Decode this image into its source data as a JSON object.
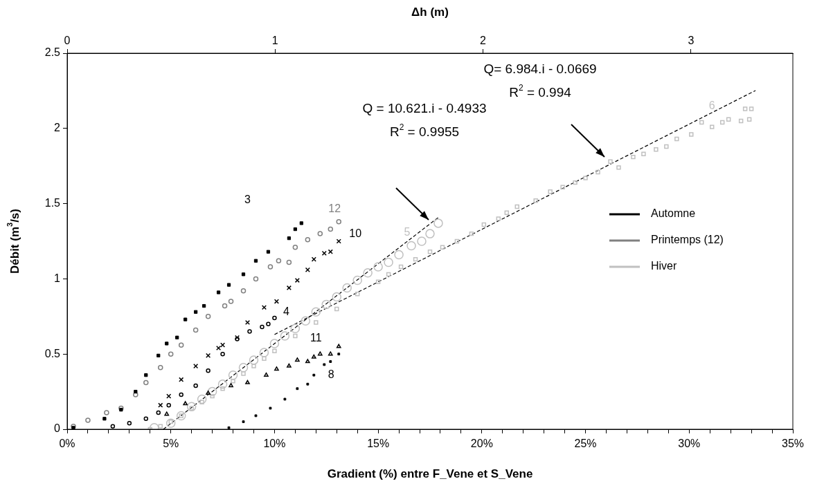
{
  "chart_data": {
    "type": "scatter",
    "xlabel": "Gradient (%) entre F_Vene et S_Vene",
    "ylabel": "Débit (m$^{3}$/s)",
    "x2label": "Δh (m)",
    "xlim": [
      0,
      35
    ],
    "xticks": [
      {
        "value": 0,
        "label": "0%"
      },
      {
        "value": 1,
        "label": null
      },
      {
        "value": 2,
        "label": null
      },
      {
        "value": 3,
        "label": null
      },
      {
        "value": 4,
        "label": null
      },
      {
        "value": 5,
        "label": "5%"
      },
      {
        "value": 6,
        "label": null
      },
      {
        "value": 7,
        "label": null
      },
      {
        "value": 8,
        "label": null
      },
      {
        "value": 9,
        "label": null
      },
      {
        "value": 10,
        "label": "10%"
      },
      {
        "value": 11,
        "label": null
      },
      {
        "value": 12,
        "label": null
      },
      {
        "value": 13,
        "label": null
      },
      {
        "value": 14,
        "label": null
      },
      {
        "value": 15,
        "label": "15%"
      },
      {
        "value": 16,
        "label": null
      },
      {
        "value": 17,
        "label": null
      },
      {
        "value": 18,
        "label": null
      },
      {
        "value": 19,
        "label": null
      },
      {
        "value": 20,
        "label": "20%"
      },
      {
        "value": 21,
        "label": null
      },
      {
        "value": 22,
        "label": null
      },
      {
        "value": 23,
        "label": null
      },
      {
        "value": 24,
        "label": null
      },
      {
        "value": 25,
        "label": "25%"
      },
      {
        "value": 26,
        "label": null
      },
      {
        "value": 27,
        "label": null
      },
      {
        "value": 28,
        "label": null
      },
      {
        "value": 29,
        "label": null
      },
      {
        "value": 30,
        "label": "30%"
      },
      {
        "value": 31,
        "label": null
      },
      {
        "value": 32,
        "label": null
      },
      {
        "value": 33,
        "label": null
      },
      {
        "value": 34,
        "label": null
      },
      {
        "value": 35,
        "label": "35%"
      }
    ],
    "x2lim": [
      0,
      3.49
    ],
    "x2ticks": [
      0,
      1,
      2,
      3
    ],
    "ylim": [
      0,
      2.5
    ],
    "yticks": [
      0,
      0.5,
      1,
      1.5,
      2,
      2.5
    ],
    "legend": "right",
    "annotations": [
      "Q = 10.621.i - 0.4933\nR$^{2}$ = 0.9955",
      "Q= 6.984.i - 0.0669\nR$^{2}$ = 0.994"
    ],
    "series": [
      {
        "name": "3",
        "color": "#000000",
        "marker": "square",
        "x": [
          0.3,
          1.8,
          2.6,
          3.3,
          3.8,
          4.4,
          4.8,
          5.3,
          5.7,
          6.2,
          6.6,
          7.3,
          7.8,
          8.5,
          9.1,
          9.7,
          10.7,
          11.0,
          11.3
        ],
        "values": [
          0.01,
          0.07,
          0.13,
          0.25,
          0.36,
          0.49,
          0.57,
          0.61,
          0.73,
          0.78,
          0.82,
          0.91,
          0.96,
          1.03,
          1.12,
          1.18,
          1.27,
          1.33,
          1.37
        ]
      },
      {
        "name": "12",
        "color": "#808080",
        "marker": "circle",
        "x": [
          0.3,
          1.0,
          1.9,
          2.6,
          3.3,
          3.8,
          4.5,
          5.0,
          5.5,
          6.2,
          6.8,
          7.6,
          7.9,
          8.5,
          9.1,
          9.8,
          10.2,
          10.7,
          11.0,
          11.6,
          12.2,
          12.7,
          13.1
        ],
        "values": [
          0.02,
          0.06,
          0.11,
          0.14,
          0.23,
          0.31,
          0.41,
          0.5,
          0.56,
          0.66,
          0.75,
          0.82,
          0.85,
          0.92,
          1.0,
          1.08,
          1.12,
          1.11,
          1.21,
          1.26,
          1.3,
          1.33,
          1.38
        ]
      },
      {
        "name": "10",
        "color": "#000000",
        "marker": "cross",
        "x": [
          4.5,
          4.9,
          5.5,
          6.2,
          6.8,
          7.3,
          7.5,
          8.2,
          8.7,
          9.5,
          10.1,
          10.7,
          11.1,
          11.6,
          11.9,
          12.4,
          12.7,
          13.1
        ],
        "values": [
          0.16,
          0.22,
          0.33,
          0.42,
          0.49,
          0.54,
          0.56,
          0.61,
          0.71,
          0.81,
          0.85,
          0.94,
          0.99,
          1.06,
          1.13,
          1.17,
          1.18,
          1.25
        ]
      },
      {
        "name": "4",
        "color": "#000000",
        "marker": "circle",
        "x": [
          2.2,
          3.0,
          3.8,
          4.4,
          4.9,
          5.5,
          6.2,
          6.8,
          7.5,
          8.2,
          8.8,
          9.4,
          9.7,
          10.0
        ],
        "values": [
          0.02,
          0.04,
          0.07,
          0.11,
          0.16,
          0.23,
          0.29,
          0.39,
          0.5,
          0.6,
          0.65,
          0.68,
          0.7,
          0.74
        ]
      },
      {
        "name": "11",
        "color": "#000000",
        "marker": "triangle",
        "x": [
          4.8,
          5.7,
          6.8,
          7.9,
          8.7,
          9.6,
          10.1,
          10.7,
          11.1,
          11.6,
          11.9,
          12.2,
          12.7,
          13.1
        ],
        "values": [
          0.1,
          0.17,
          0.24,
          0.29,
          0.31,
          0.36,
          0.4,
          0.42,
          0.46,
          0.45,
          0.48,
          0.5,
          0.5,
          0.55
        ]
      },
      {
        "name": "8",
        "color": "#000000",
        "marker": "square",
        "x": [
          7.8,
          8.5,
          9.1,
          9.8,
          10.5,
          11.1,
          11.6,
          11.9,
          12.4,
          12.7,
          13.1
        ],
        "values": [
          0.01,
          0.05,
          0.09,
          0.14,
          0.2,
          0.27,
          0.3,
          0.36,
          0.43,
          0.45,
          0.5
        ]
      },
      {
        "name": "5",
        "color": "#c0c0c0",
        "marker": "circle",
        "x": [
          4.2,
          5.0,
          5.5,
          6.0,
          6.5,
          7.0,
          7.5,
          8.0,
          8.5,
          9.0,
          9.5,
          10.0,
          10.5,
          11.0,
          11.5,
          12.0,
          12.5,
          13.0,
          13.5,
          14.0,
          14.5,
          15.0,
          15.5,
          16.0,
          16.6,
          17.1,
          17.5,
          17.9
        ],
        "values": [
          0.01,
          0.04,
          0.09,
          0.15,
          0.2,
          0.25,
          0.3,
          0.36,
          0.41,
          0.46,
          0.51,
          0.57,
          0.62,
          0.67,
          0.72,
          0.78,
          0.83,
          0.88,
          0.94,
          0.99,
          1.04,
          1.08,
          1.11,
          1.16,
          1.22,
          1.25,
          1.3,
          1.37
        ]
      },
      {
        "name": "6",
        "color": "#c0c0c0",
        "marker": "square",
        "x": [
          4.0,
          4.5,
          5.0,
          5.5,
          6.0,
          6.5,
          7.0,
          7.5,
          8.0,
          8.5,
          9.0,
          9.5,
          10.0,
          11.0,
          12.0,
          13.0,
          14.0,
          15.0,
          15.5,
          16.1,
          16.8,
          17.5,
          18.1,
          18.8,
          19.5,
          20.1,
          20.8,
          21.2,
          21.7,
          22.6,
          23.3,
          23.9,
          24.5,
          25.0,
          25.6,
          26.2,
          26.6,
          27.3,
          27.8,
          28.4,
          28.9,
          29.4,
          30.1,
          30.6,
          31.1,
          31.6,
          31.9,
          32.5,
          32.7,
          32.9,
          33.0
        ],
        "values": [
          0.0,
          0.02,
          0.05,
          0.09,
          0.14,
          0.18,
          0.22,
          0.27,
          0.32,
          0.37,
          0.42,
          0.47,
          0.52,
          0.62,
          0.71,
          0.8,
          0.9,
          0.98,
          1.03,
          1.08,
          1.13,
          1.18,
          1.21,
          1.25,
          1.3,
          1.36,
          1.4,
          1.44,
          1.48,
          1.52,
          1.58,
          1.61,
          1.64,
          1.67,
          1.71,
          1.78,
          1.74,
          1.81,
          1.83,
          1.86,
          1.88,
          1.93,
          1.96,
          2.04,
          2.01,
          2.04,
          2.06,
          2.05,
          2.13,
          2.06,
          2.13
        ]
      },
      {
        "type": "line",
        "color": "#000000",
        "line_style": "dashed",
        "x": [
          4.64,
          17.9
        ],
        "values": [
          0,
          1.408
        ]
      },
      {
        "type": "line",
        "color": "#000000",
        "line_style": "dashed",
        "x": [
          10,
          33.2
        ],
        "values": [
          0.63,
          2.252
        ]
      },
      {
        "type": "line",
        "name": "Automne",
        "color": "#000000"
      },
      {
        "type": "line",
        "name": "Printemps (12)",
        "color": "#808080"
      },
      {
        "type": "line",
        "name": "Hiver",
        "color": "#c0c0c0"
      }
    ]
  }
}
